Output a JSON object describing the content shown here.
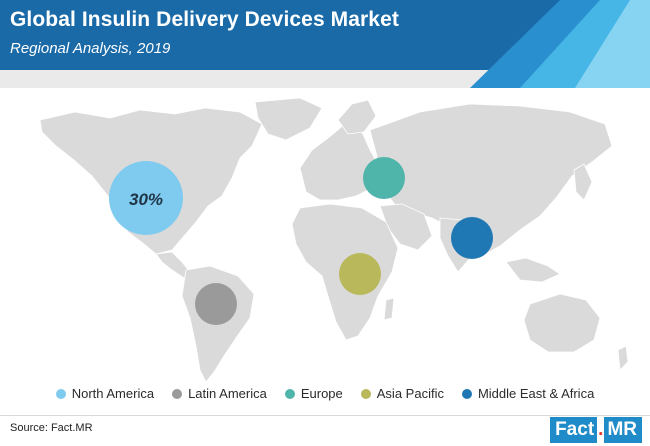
{
  "title": "Global Insulin Delivery Devices Market",
  "subtitle": "Regional Analysis, 2019",
  "regions": [
    {
      "name": "North America",
      "color": "#7ecbef",
      "share_label": "30%"
    },
    {
      "name": "Latin America",
      "color": "#9a9a9a",
      "share_label": ""
    },
    {
      "name": "Europe",
      "color": "#4fb5ab",
      "share_label": ""
    },
    {
      "name": "Asia Pacific",
      "color": "#b9b85a",
      "share_label": ""
    },
    {
      "name": "Middle East & Africa",
      "color": "#1f78b4",
      "share_label": ""
    }
  ],
  "source": "Source: Fact.MR",
  "logo": {
    "part1": "Fact",
    "dot": ".",
    "part2": "MR"
  },
  "colors": {
    "header": "#1a6aa8",
    "header_accent": "#2fa8dc",
    "land": "#dadada"
  }
}
